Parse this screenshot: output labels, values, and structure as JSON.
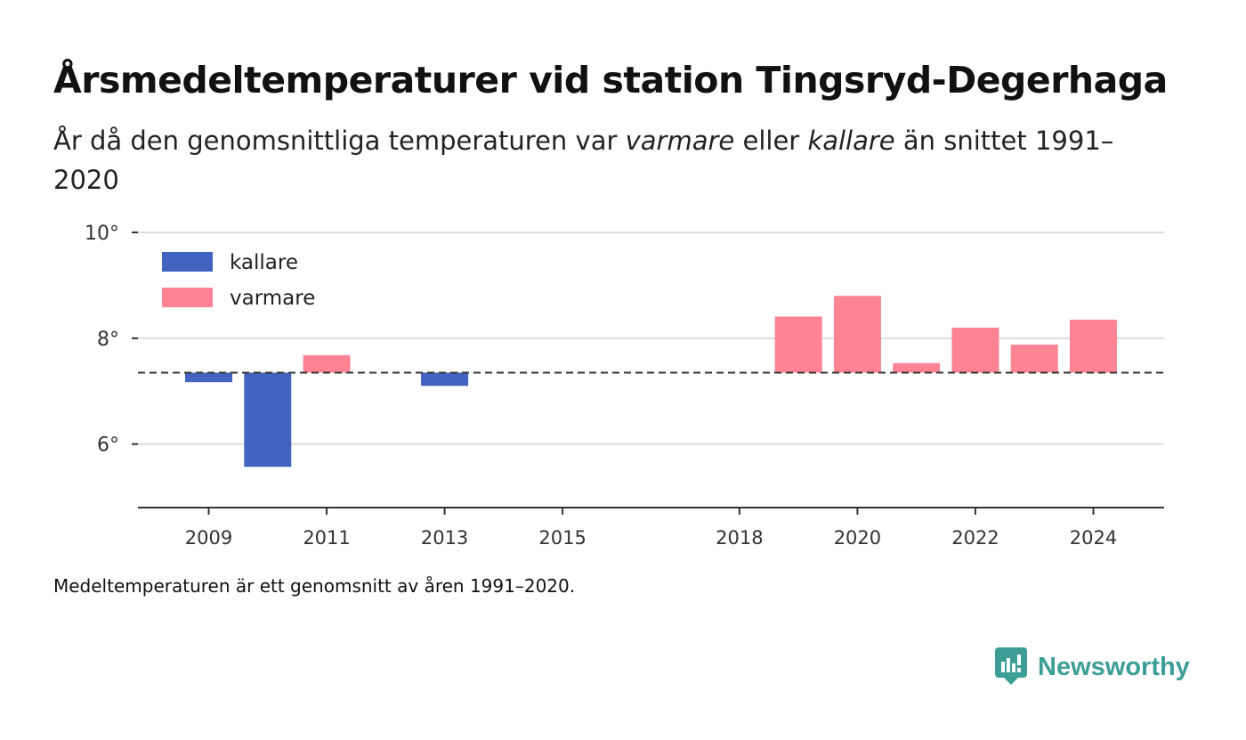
{
  "header": {
    "title": "Årsmedeltemperaturer vid station Tingsryd-Degerhaga",
    "subtitle_pre": "År då den genomsnittliga temperaturen var ",
    "subtitle_warm": "varmare",
    "subtitle_mid": " eller ",
    "subtitle_cold": "kallare",
    "subtitle_post": " än snittet 1991–2020"
  },
  "footnote": "Medeltemperaturen är ett genomsnitt av åren 1991–2020.",
  "brand": {
    "name": "Newsworthy",
    "color": "#3c9e96",
    "icon": "newsworthy-logo-icon"
  },
  "chart_data": {
    "type": "bar",
    "baseline": 7.35,
    "ylim": [
      4.8,
      10
    ],
    "xlim": [
      2007.8,
      2025.2
    ],
    "yticks": [
      {
        "value": 6,
        "label": "6°"
      },
      {
        "value": 8,
        "label": "8°"
      },
      {
        "value": 10,
        "label": "10°"
      }
    ],
    "xticks": [
      {
        "value": 2009,
        "label": "2009"
      },
      {
        "value": 2011,
        "label": "2011"
      },
      {
        "value": 2013,
        "label": "2013"
      },
      {
        "value": 2015,
        "label": "2015"
      },
      {
        "value": 2018,
        "label": "2018"
      },
      {
        "value": 2020,
        "label": "2020"
      },
      {
        "value": 2022,
        "label": "2022"
      },
      {
        "value": 2024,
        "label": "2024"
      }
    ],
    "legend": {
      "placement": "top-left",
      "items": [
        {
          "label": "kallare",
          "color": "#4263c0"
        },
        {
          "label": "varmare",
          "color": "#ff8493"
        }
      ]
    },
    "colors": {
      "kallare": "#4263c0",
      "varmare": "#ff8493"
    },
    "bars": [
      {
        "year": 2009,
        "value": 7.17,
        "category": "kallare"
      },
      {
        "year": 2010,
        "value": 5.57,
        "category": "kallare"
      },
      {
        "year": 2011,
        "value": 7.68,
        "category": "varmare"
      },
      {
        "year": 2013,
        "value": 7.1,
        "category": "kallare"
      },
      {
        "year": 2019,
        "value": 8.41,
        "category": "varmare"
      },
      {
        "year": 2020,
        "value": 8.8,
        "category": "varmare"
      },
      {
        "year": 2021,
        "value": 7.53,
        "category": "varmare"
      },
      {
        "year": 2022,
        "value": 8.2,
        "category": "varmare"
      },
      {
        "year": 2023,
        "value": 7.88,
        "category": "varmare"
      },
      {
        "year": 2024,
        "value": 8.35,
        "category": "varmare"
      }
    ]
  }
}
